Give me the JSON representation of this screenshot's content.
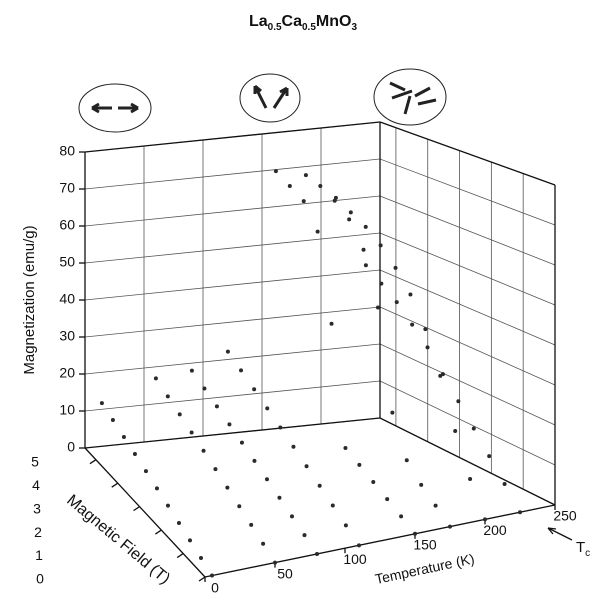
{
  "chart_data": {
    "type": "scatter3d",
    "title": [
      "La",
      "0.5",
      "Ca",
      "0.5",
      "MnO",
      "3"
    ],
    "x_label": "Temperature (K)",
    "y_label": "Magnetic Field (T)",
    "z_label": "Magnetization (emu/g)",
    "tc_label": [
      "T",
      "c"
    ],
    "xlim": [
      0,
      250
    ],
    "xticks": [
      0,
      50,
      100,
      150,
      200,
      250
    ],
    "ylim": [
      0,
      5.5
    ],
    "yticks": [
      0,
      1,
      2,
      3,
      4,
      5
    ],
    "zlim": [
      0,
      80
    ],
    "zticks": [
      0,
      10,
      20,
      30,
      40,
      50,
      60,
      70,
      80
    ],
    "grid": true,
    "color": "#2a2a2a",
    "fields": [
      0,
      0.5,
      1,
      1.5,
      2,
      2.5,
      3,
      3.5,
      4,
      4.5,
      5
    ],
    "series": [
      {
        "temperature": 5,
        "values": [
          0,
          1.5,
          3,
          4.5,
          6,
          7.5,
          9,
          10.5,
          12,
          13.5,
          15
        ]
      },
      {
        "temperature": 50,
        "values": [
          0,
          2,
          4,
          6,
          8,
          10,
          12,
          14,
          16,
          18,
          20
        ]
      },
      {
        "temperature": 80,
        "values": [
          0,
          2.1,
          4.2,
          6.3,
          8.4,
          10.5,
          12.6,
          14.7,
          16.8,
          18.9,
          21
        ]
      },
      {
        "temperature": 110,
        "values": [
          0,
          2.5,
          5,
          7.5,
          10,
          12.5,
          15,
          17.5,
          20,
          22.5,
          25
        ]
      },
      {
        "temperature": 150,
        "values": [
          0,
          2,
          4,
          6,
          8,
          10,
          40,
          62,
          68,
          70,
          72
        ]
      },
      {
        "temperature": 175,
        "values": [
          0,
          3,
          6,
          10,
          20,
          45,
          58,
          64,
          67,
          69,
          70
        ]
      },
      {
        "temperature": 200,
        "values": [
          0,
          8,
          18,
          30,
          40,
          47,
          52,
          56,
          59,
          61,
          63
        ]
      },
      {
        "temperature": 225,
        "values": [
          0,
          5,
          10,
          15,
          20,
          25,
          30,
          34,
          38,
          41,
          44
        ]
      }
    ]
  }
}
